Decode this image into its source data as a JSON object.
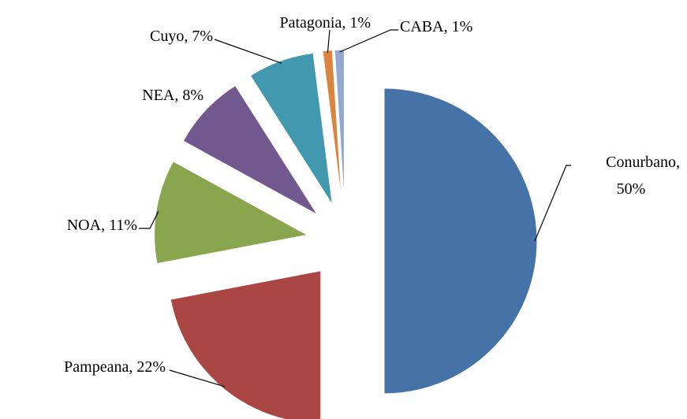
{
  "chart_data": {
    "type": "pie",
    "categories": [
      "Conurbano",
      "Pampeana",
      "NOA",
      "NEA",
      "Cuyo",
      "Patagonia",
      "CABA"
    ],
    "values": [
      50,
      22,
      11,
      8,
      7,
      1,
      1
    ],
    "value_labels": [
      "50%",
      "22%",
      "11%",
      "8%",
      "7%",
      "1%",
      "1%"
    ],
    "colors": [
      "#4573a7",
      "#aa4643",
      "#89a54e",
      "#71588f",
      "#4198af",
      "#db843d",
      "#93a9cf"
    ]
  }
}
